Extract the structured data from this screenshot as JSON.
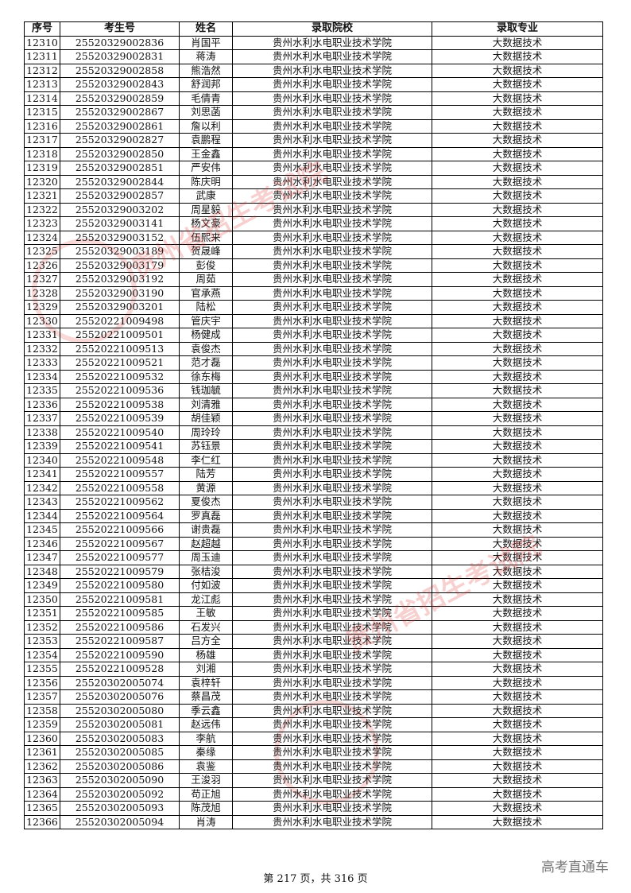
{
  "headers": [
    "序号",
    "考生号",
    "姓名",
    "录取院校",
    "录取专业"
  ],
  "school": "贵州水利水电职业技术学院",
  "major": "大数据技术",
  "rows": [
    [
      "12310",
      "25520329002836",
      "肖国平"
    ],
    [
      "12311",
      "25520329002831",
      "蒋涛"
    ],
    [
      "12312",
      "25520329002858",
      "熊浩然"
    ],
    [
      "12313",
      "25520329002843",
      "舒润邦"
    ],
    [
      "12314",
      "25520329002859",
      "毛倩青"
    ],
    [
      "12315",
      "25520329002867",
      "刘思菡"
    ],
    [
      "12316",
      "25520329002861",
      "詹以利"
    ],
    [
      "12317",
      "25520329002827",
      "袁鹏程"
    ],
    [
      "12318",
      "25520329002850",
      "王金鑫"
    ],
    [
      "12319",
      "25520329002851",
      "严安伟"
    ],
    [
      "12320",
      "25520329002844",
      "陈庆明"
    ],
    [
      "12321",
      "25520329002857",
      "武康"
    ],
    [
      "12322",
      "25520329003202",
      "周星毅"
    ],
    [
      "12323",
      "25520329003141",
      "杨文豪"
    ],
    [
      "12324",
      "25520329003152",
      "伍熙来"
    ],
    [
      "12325",
      "25520329003189",
      "贺晟峰"
    ],
    [
      "12326",
      "25520329003179",
      "彭俊"
    ],
    [
      "12327",
      "25520329003192",
      "周茹"
    ],
    [
      "12328",
      "25520329003190",
      "官承燕"
    ],
    [
      "12329",
      "25520329003201",
      "陆松"
    ],
    [
      "12330",
      "25520221009498",
      "管庆宇"
    ],
    [
      "12331",
      "25520221009501",
      "杨健成"
    ],
    [
      "12332",
      "25520221009513",
      "袁俊杰"
    ],
    [
      "12333",
      "25520221009521",
      "范才磊"
    ],
    [
      "12334",
      "25520221009532",
      "徐东梅"
    ],
    [
      "12335",
      "25520221009536",
      "钱珈毓"
    ],
    [
      "12336",
      "25520221009538",
      "刘清雅"
    ],
    [
      "12337",
      "25520221009539",
      "胡佳颖"
    ],
    [
      "12338",
      "25520221009540",
      "周玲玲"
    ],
    [
      "12339",
      "25520221009541",
      "苏钰景"
    ],
    [
      "12340",
      "25520221009548",
      "李仁红"
    ],
    [
      "12341",
      "25520221009557",
      "陆芳"
    ],
    [
      "12342",
      "25520221009558",
      "黄源"
    ],
    [
      "12343",
      "25520221009562",
      "夏俊杰"
    ],
    [
      "12344",
      "25520221009564",
      "罗真磊"
    ],
    [
      "12345",
      "25520221009566",
      "谢贵磊"
    ],
    [
      "12346",
      "25520221009567",
      "赵超越"
    ],
    [
      "12347",
      "25520221009577",
      "周玉迪"
    ],
    [
      "12348",
      "25520221009579",
      "张桔浚"
    ],
    [
      "12349",
      "25520221009580",
      "付如波"
    ],
    [
      "12350",
      "25520221009581",
      "龙江彪"
    ],
    [
      "12351",
      "25520221009585",
      "王敏"
    ],
    [
      "12352",
      "25520221009586",
      "石发兴"
    ],
    [
      "12353",
      "25520221009587",
      "吕方全"
    ],
    [
      "12354",
      "25520221009590",
      "杨雄"
    ],
    [
      "12355",
      "25520221009528",
      "刘湘"
    ],
    [
      "12356",
      "25520302005074",
      "袁梓轩"
    ],
    [
      "12357",
      "25520302005076",
      "蔡昌茂"
    ],
    [
      "12358",
      "25520302005080",
      "季云鑫"
    ],
    [
      "12359",
      "25520302005081",
      "赵远伟"
    ],
    [
      "12360",
      "25520302005083",
      "李航"
    ],
    [
      "12361",
      "25520302005085",
      "秦缘"
    ],
    [
      "12362",
      "25520302005086",
      "袁鉴"
    ],
    [
      "12363",
      "25520302005090",
      "王浚羽"
    ],
    [
      "12364",
      "25520302005092",
      "苟正旭"
    ],
    [
      "12365",
      "25520302005093",
      "陈茂旭"
    ],
    [
      "12366",
      "25520302005094",
      "肖涛"
    ]
  ],
  "footer": "第 217 页，共 316 页",
  "watermark": "高考直通车",
  "stamp_text": "贵州省招生考试院",
  "stamp_color": "#dc2828"
}
